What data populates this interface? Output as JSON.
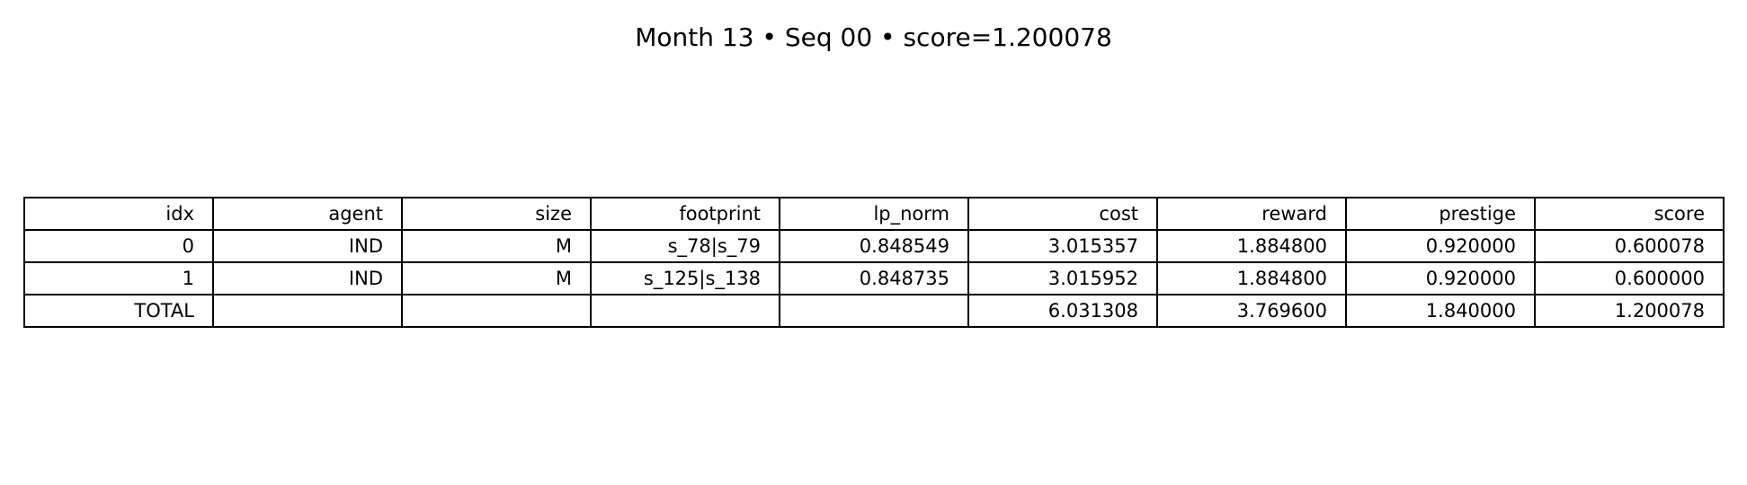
{
  "chart_data": {
    "type": "table",
    "title": "Month 13 • Seq 00 • score=1.200078",
    "columns": [
      "idx",
      "agent",
      "size",
      "footprint",
      "lp_norm",
      "cost",
      "reward",
      "prestige",
      "score"
    ],
    "rows": [
      [
        "0",
        "IND",
        "M",
        "s_78|s_79",
        "0.848549",
        "3.015357",
        "1.884800",
        "0.920000",
        "0.600078"
      ],
      [
        "1",
        "IND",
        "M",
        "s_125|s_138",
        "0.848735",
        "3.015952",
        "1.884800",
        "0.920000",
        "0.600000"
      ],
      [
        "TOTAL",
        "",
        "",
        "",
        "",
        "6.031308",
        "3.769600",
        "1.840000",
        "1.200078"
      ]
    ]
  }
}
